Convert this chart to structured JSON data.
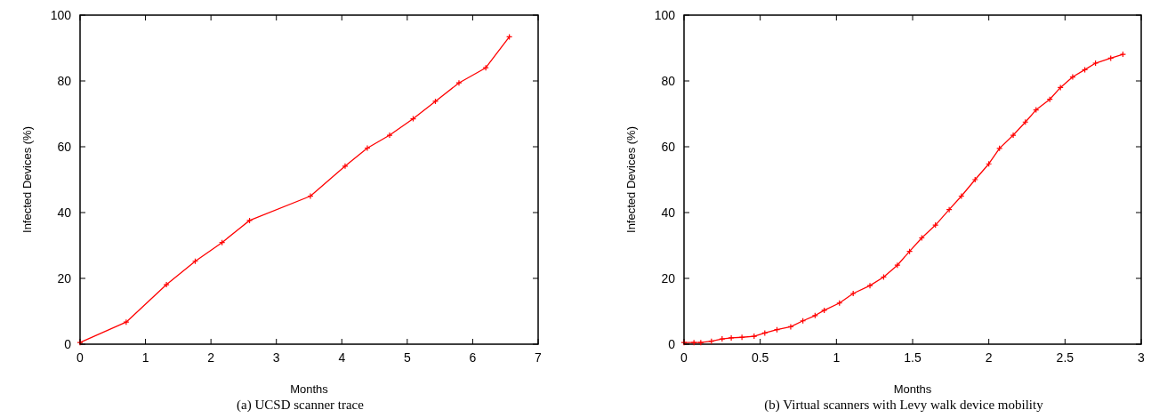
{
  "chart_data": [
    {
      "type": "line",
      "title": "(a)  UCSD scanner trace",
      "xlabel": "Months",
      "ylabel": "Infected Devices (%)",
      "x": [
        0,
        0.705,
        1.32,
        1.76,
        2.17,
        2.59,
        3.52,
        4.05,
        4.39,
        4.73,
        5.09,
        5.43,
        5.79,
        6.2,
        6.56
      ],
      "series": [
        {
          "color": "#ff0000",
          "values": [
            0.5,
            6.7,
            18.1,
            25.2,
            30.9,
            37.6,
            45.0,
            54.1,
            59.6,
            63.5,
            68.5,
            73.8,
            79.4,
            84.0,
            93.4
          ]
        }
      ],
      "xlim": [
        0,
        7
      ],
      "xticks": [
        0,
        1,
        2,
        3,
        4,
        5,
        6,
        7
      ],
      "ylim": [
        0,
        100
      ],
      "yticks": [
        0,
        20,
        40,
        60,
        80,
        100
      ],
      "marker": "cross",
      "line_style": "solid"
    },
    {
      "type": "line",
      "title": "(b)  Virtual scanners with Levy walk device mobility",
      "xlabel": "Months",
      "ylabel": "Infected Devices (%)",
      "x": [
        0,
        0.065,
        0.11,
        0.18,
        0.25,
        0.31,
        0.38,
        0.46,
        0.53,
        0.61,
        0.7,
        0.78,
        0.86,
        0.92,
        1.02,
        1.11,
        1.22,
        1.31,
        1.4,
        1.48,
        1.56,
        1.65,
        1.74,
        1.82,
        1.91,
        2.0,
        2.07,
        2.16,
        2.24,
        2.31,
        2.4,
        2.47,
        2.55,
        2.63,
        2.7,
        2.8,
        2.88
      ],
      "series": [
        {
          "color": "#ff0000",
          "values": [
            0.5,
            0.5,
            0.5,
            0.9,
            1.6,
            1.9,
            2.1,
            2.4,
            3.4,
            4.4,
            5.3,
            7.1,
            8.7,
            10.3,
            12.5,
            15.4,
            17.8,
            20.4,
            24.0,
            28.2,
            32.3,
            36.2,
            40.9,
            45.0,
            50.0,
            54.8,
            59.5,
            63.5,
            67.5,
            71.2,
            74.4,
            78.0,
            81.2,
            83.4,
            85.4,
            86.9,
            88.1
          ]
        }
      ],
      "xlim": [
        0,
        3
      ],
      "xticks": [
        0,
        0.5,
        1,
        1.5,
        2,
        2.5,
        3
      ],
      "ylim": [
        0,
        100
      ],
      "yticks": [
        0,
        20,
        40,
        60,
        80,
        100
      ],
      "marker": "cross",
      "line_style": "solid"
    }
  ]
}
